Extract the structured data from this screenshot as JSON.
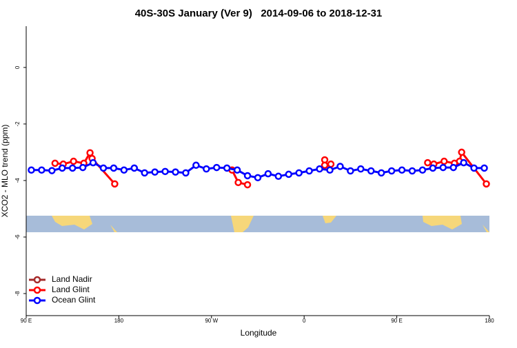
{
  "chart_data": {
    "type": "line",
    "title": "40S-30S January (Ver 9)   2014-09-06 to 2018-12-31",
    "xlabel": "Longitude",
    "ylabel": "XCO2 - MLO trend (ppm)",
    "xlim": [
      90,
      540
    ],
    "xticks": [
      {
        "value": 90,
        "label": "90 E"
      },
      180,
      {
        "value": 270,
        "label": "90 W"
      },
      {
        "value": 360,
        "label": "0"
      },
      {
        "value": 450,
        "label": "90 E"
      },
      {
        "value": 540,
        "label": "180"
      }
    ],
    "ylim": [
      -8.78,
      1.46
    ],
    "yticks": [
      0,
      -2,
      -4,
      -6,
      -8
    ],
    "legend": "bottom-left",
    "series": [
      {
        "name": "Land Nadir",
        "color": "#a52a2a",
        "x": [],
        "values": []
      },
      {
        "name": "Land Glint",
        "color": "#ff0000",
        "x": [
          118,
          126,
          136,
          146,
          152,
          154,
          176,
          200,
          290,
          296,
          305,
          340,
          380,
          380,
          386,
          430,
          480,
          486,
          496,
          506,
          511,
          513,
          537
        ],
        "values": [
          -3.39,
          -3.42,
          -3.32,
          -3.39,
          -3.02,
          -3.22,
          -4.12,
          null,
          -3.63,
          -4.07,
          -4.15,
          null,
          -3.27,
          -3.46,
          -3.42,
          null,
          -3.37,
          -3.42,
          -3.32,
          -3.39,
          -3.32,
          -3.0,
          -4.12
        ]
      },
      {
        "name": "Ocean Glint",
        "color": "#0000ff",
        "x": [
          95,
          105,
          115,
          125,
          135,
          145,
          155,
          165,
          175,
          185,
          195,
          205,
          215,
          225,
          235,
          245,
          255,
          265,
          275,
          285,
          295,
          305,
          315,
          325,
          335,
          345,
          355,
          365,
          375,
          385,
          395,
          405,
          415,
          425,
          435,
          445,
          455,
          465,
          475,
          485,
          495,
          505,
          515,
          525,
          535
        ],
        "values": [
          -3.63,
          -3.63,
          -3.65,
          -3.56,
          -3.56,
          -3.54,
          -3.37,
          -3.56,
          -3.56,
          -3.63,
          -3.56,
          -3.73,
          -3.7,
          -3.68,
          -3.7,
          -3.73,
          -3.46,
          -3.59,
          -3.54,
          -3.56,
          -3.63,
          -3.83,
          -3.9,
          -3.76,
          -3.85,
          -3.78,
          -3.73,
          -3.66,
          -3.59,
          -3.63,
          -3.5,
          -3.66,
          -3.59,
          -3.66,
          -3.73,
          -3.66,
          -3.63,
          -3.66,
          -3.63,
          -3.56,
          -3.54,
          -3.54,
          -3.37,
          -3.56,
          -3.56
        ]
      }
    ]
  }
}
